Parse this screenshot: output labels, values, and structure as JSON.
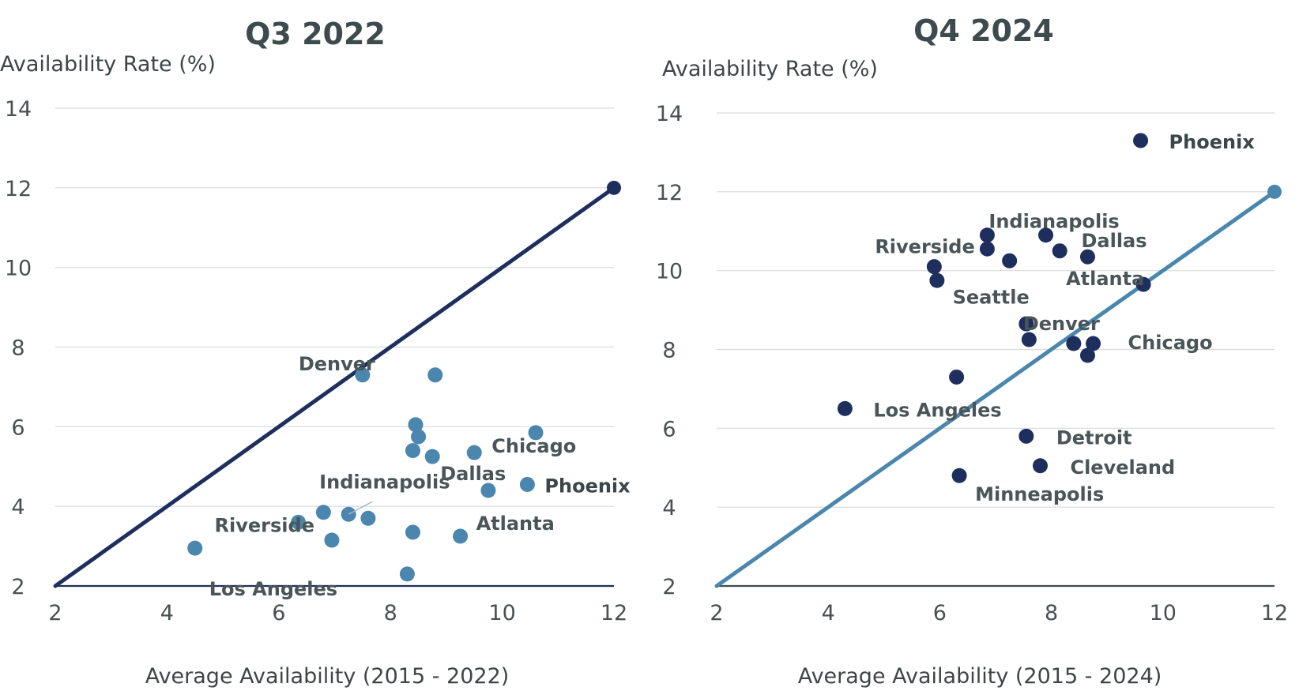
{
  "chart_data": [
    {
      "type": "scatter",
      "title": "Q3 2022",
      "ylabel": "Availability Rate (%)",
      "xlabel": "Average Availability (2015 - 2022)",
      "xlim": [
        2,
        12
      ],
      "ylim": [
        2,
        14
      ],
      "xticks": [
        "2",
        "4",
        "6",
        "8",
        "10",
        "12"
      ],
      "yticks": [
        "2",
        "4",
        "6",
        "8",
        "10",
        "12",
        "14"
      ],
      "xtick_values": [
        2,
        4,
        6,
        8,
        10,
        12
      ],
      "ytick_values": [
        2,
        4,
        6,
        8,
        10,
        12,
        14
      ],
      "grid": true,
      "point_color": "#4a86ad",
      "reference_line": {
        "x": [
          2,
          12
        ],
        "y": [
          2,
          12
        ],
        "color": "#1e2f5e"
      },
      "points": [
        {
          "x": 7.5,
          "y": 7.3,
          "label": "Denver"
        },
        {
          "x": 8.8,
          "y": 7.3
        },
        {
          "x": 10.6,
          "y": 5.85
        },
        {
          "x": 8.45,
          "y": 6.05
        },
        {
          "x": 8.5,
          "y": 5.75
        },
        {
          "x": 8.4,
          "y": 5.4
        },
        {
          "x": 8.75,
          "y": 5.25,
          "label": "Dallas"
        },
        {
          "x": 9.5,
          "y": 5.35,
          "label": "Chicago"
        },
        {
          "x": 9.75,
          "y": 4.4
        },
        {
          "x": 10.45,
          "y": 4.55,
          "label": "Phoenix",
          "highlight": true
        },
        {
          "x": 7.25,
          "y": 3.8,
          "label": "Indianapolis"
        },
        {
          "x": 6.8,
          "y": 3.85
        },
        {
          "x": 6.35,
          "y": 3.6,
          "label": "Riverside"
        },
        {
          "x": 7.6,
          "y": 3.7
        },
        {
          "x": 8.4,
          "y": 3.35
        },
        {
          "x": 9.25,
          "y": 3.25,
          "label": "Atlanta"
        },
        {
          "x": 6.95,
          "y": 3.15
        },
        {
          "x": 4.5,
          "y": 2.95,
          "label": "Los Angeles"
        },
        {
          "x": 8.3,
          "y": 2.3
        }
      ]
    },
    {
      "type": "scatter",
      "title": "Q4 2024",
      "ylabel": "Availability Rate (%)",
      "xlabel": "Average Availability (2015 - 2024)",
      "xlim": [
        2,
        12
      ],
      "ylim": [
        2,
        14
      ],
      "xticks": [
        "2",
        "4",
        "6",
        "8",
        "10",
        "12"
      ],
      "yticks": [
        "2",
        "4",
        "6",
        "8",
        "10",
        "12",
        "14"
      ],
      "xtick_values": [
        2,
        4,
        6,
        8,
        10,
        12
      ],
      "ytick_values": [
        2,
        4,
        6,
        8,
        10,
        12,
        14
      ],
      "grid": true,
      "point_color": "#1e2f5e",
      "reference_line": {
        "x": [
          2,
          12
        ],
        "y": [
          2,
          12
        ],
        "color": "#4a86ad"
      },
      "points": [
        {
          "x": 9.6,
          "y": 13.3,
          "label": "Phoenix",
          "highlight": true
        },
        {
          "x": 6.85,
          "y": 10.9,
          "label": "Indianapolis"
        },
        {
          "x": 7.9,
          "y": 10.9
        },
        {
          "x": 6.85,
          "y": 10.55
        },
        {
          "x": 8.15,
          "y": 10.5
        },
        {
          "x": 8.65,
          "y": 10.35,
          "label": "Dallas"
        },
        {
          "x": 7.25,
          "y": 10.25
        },
        {
          "x": 5.9,
          "y": 10.1,
          "label": "Riverside"
        },
        {
          "x": 5.95,
          "y": 9.75
        },
        {
          "x": 9.65,
          "y": 9.65,
          "label": "Atlanta"
        },
        {
          "x": 7.55,
          "y": 8.65,
          "label": "Denver"
        },
        {
          "x": 7.6,
          "y": 8.25
        },
        {
          "x": 8.4,
          "y": 8.15
        },
        {
          "x": 8.75,
          "y": 8.15,
          "label": "Chicago"
        },
        {
          "x": 8.65,
          "y": 7.85
        },
        {
          "x": 6.3,
          "y": 7.3,
          "label": "Seattle"
        },
        {
          "x": 4.3,
          "y": 6.5,
          "label": "Los Angeles"
        },
        {
          "x": 7.55,
          "y": 5.8,
          "label": "Detroit"
        },
        {
          "x": 7.8,
          "y": 5.05,
          "label": "Cleveland"
        },
        {
          "x": 6.35,
          "y": 4.8,
          "label": "Minneapolis"
        }
      ]
    }
  ]
}
